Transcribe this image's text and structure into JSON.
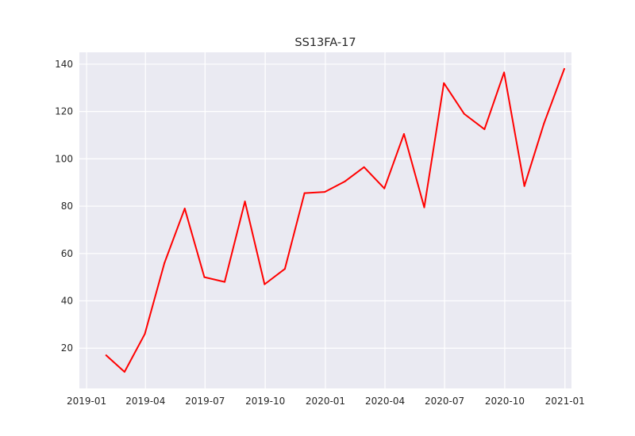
{
  "chart_data": {
    "type": "line",
    "title": "SS13FA-17",
    "xlabel": "",
    "ylabel": "",
    "x_axis_type": "date",
    "xlim": [
      "2018-12-21",
      "2021-01-11"
    ],
    "ylim": [
      3,
      145
    ],
    "x_ticks": [
      "2019-01",
      "2019-04",
      "2019-07",
      "2019-10",
      "2020-01",
      "2020-04",
      "2020-07",
      "2020-10",
      "2021-01"
    ],
    "y_ticks": [
      20,
      40,
      60,
      80,
      100,
      120,
      140
    ],
    "grid": true,
    "legend": "none",
    "series": [
      {
        "color": "#ff0000",
        "x": [
          "2019-01-31",
          "2019-02-28",
          "2019-03-31",
          "2019-04-30",
          "2019-05-31",
          "2019-06-30",
          "2019-07-31",
          "2019-08-31",
          "2019-09-30",
          "2019-10-31",
          "2019-11-30",
          "2019-12-31",
          "2020-01-31",
          "2020-02-29",
          "2020-03-31",
          "2020-04-30",
          "2020-05-31",
          "2020-06-30",
          "2020-07-31",
          "2020-08-31",
          "2020-09-30",
          "2020-10-31",
          "2020-11-30",
          "2020-12-31"
        ],
        "values": [
          17,
          10,
          26,
          56,
          79,
          50,
          48,
          82,
          47,
          53.5,
          85.5,
          86,
          90.5,
          96.5,
          87.5,
          110.5,
          79.5,
          132,
          119,
          112.5,
          136.5,
          88.5,
          115,
          138
        ]
      }
    ]
  }
}
